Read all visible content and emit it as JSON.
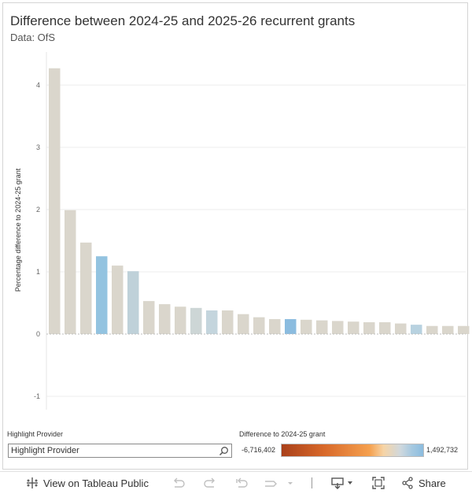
{
  "title": "Difference between 2024-25 and 2025-26 recurrent grants",
  "subtitle": "Data: OfS",
  "chart_data": {
    "type": "bar",
    "ylabel": "Percentage difference to 2024-25 grant",
    "xlabel": "",
    "ylim": [
      -1.2,
      4.5
    ],
    "yticks": [
      4,
      3,
      2,
      1,
      0,
      -1
    ],
    "grid": true,
    "values": [
      4.27,
      1.99,
      1.47,
      1.25,
      1.1,
      1.01,
      0.53,
      0.48,
      0.44,
      0.42,
      0.38,
      0.38,
      0.32,
      0.27,
      0.24,
      0.24,
      0.23,
      0.22,
      0.21,
      0.2,
      0.19,
      0.19,
      0.17,
      0.15,
      0.13,
      0.13,
      0.13,
      0.13
    ],
    "colors": [
      "#dad6cc",
      "#dad6cc",
      "#dad6cc",
      "#93c3e0",
      "#dad6cc",
      "#bfd1d9",
      "#dad6cc",
      "#dad6cc",
      "#dad6cc",
      "#cdd6d6",
      "#c4d5dd",
      "#dad6cc",
      "#dad6cc",
      "#dad6cc",
      "#dad6cc",
      "#8bbcdf",
      "#dad6cc",
      "#dad6cc",
      "#dad6cc",
      "#dad6cc",
      "#dad6cc",
      "#dad6cc",
      "#dad6cc",
      "#b8d2e0",
      "#dad6cc",
      "#dad6cc",
      "#dad6cc",
      "#dad6cc"
    ]
  },
  "highlight": {
    "label": "Highlight Provider",
    "placeholder": "Highlight Provider"
  },
  "legend": {
    "title": "Difference to 2024-25 grant",
    "min": "-6,716,402",
    "max": "1,492,732"
  },
  "toolbar": {
    "view_label": "View on Tableau Public",
    "share_label": "Share"
  },
  "colors": {
    "gridline": "#ececec",
    "axis_text": "#666666",
    "icon": "#666666",
    "icon_disabled": "#c0c0c0"
  }
}
